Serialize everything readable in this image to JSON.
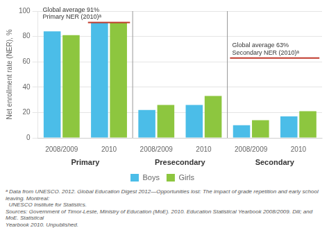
{
  "chart_data": {
    "type": "bar",
    "categories": [
      "2008/2009",
      "2010",
      "2008/2009",
      "2010",
      "2008/2009",
      "2010"
    ],
    "groups": [
      "Primary",
      "Presecondary",
      "Secondary"
    ],
    "series": [
      {
        "name": "Boys",
        "color": "#4BBDE8",
        "values": [
          84,
          91,
          22,
          26,
          10,
          17
        ]
      },
      {
        "name": "Girls",
        "color": "#8DC63F",
        "values": [
          81,
          91,
          26,
          33,
          14,
          21
        ]
      }
    ],
    "ylabel": "Net enrollment rate (NER), %",
    "ylim": [
      0,
      100
    ],
    "yticks": [
      0,
      20,
      40,
      60,
      80,
      100
    ],
    "grid": true,
    "legend": "bottom",
    "reference_lines": [
      {
        "value": 91,
        "label": [
          "Global average 91%",
          "Primary NER (2010)ᵃ"
        ],
        "group": "Primary",
        "categories": [
          "2010"
        ],
        "color": "#C0392B"
      },
      {
        "value": 63,
        "label": [
          "Global average 63%",
          "Secondary NER (2010)ᵃ"
        ],
        "group": "Secondary",
        "categories": [
          "2008/2009",
          "2010"
        ],
        "color": "#C0392B"
      }
    ],
    "footnotes": [
      "ᵃ Data from UNESCO. 2012. Global Education Digest 2012—Opportunities lost: The impact of grade repetition and early school leaving. Montreal:",
      "  UNESCO Institute for Statistics.",
      "Sources: Government of Timor-Leste, Ministry of Education (MoE). 2010. Education Statistical Yearbook 2008/2009. Dili; and MoE. Statistical",
      "Yearbook 2010. Unpublished."
    ]
  }
}
